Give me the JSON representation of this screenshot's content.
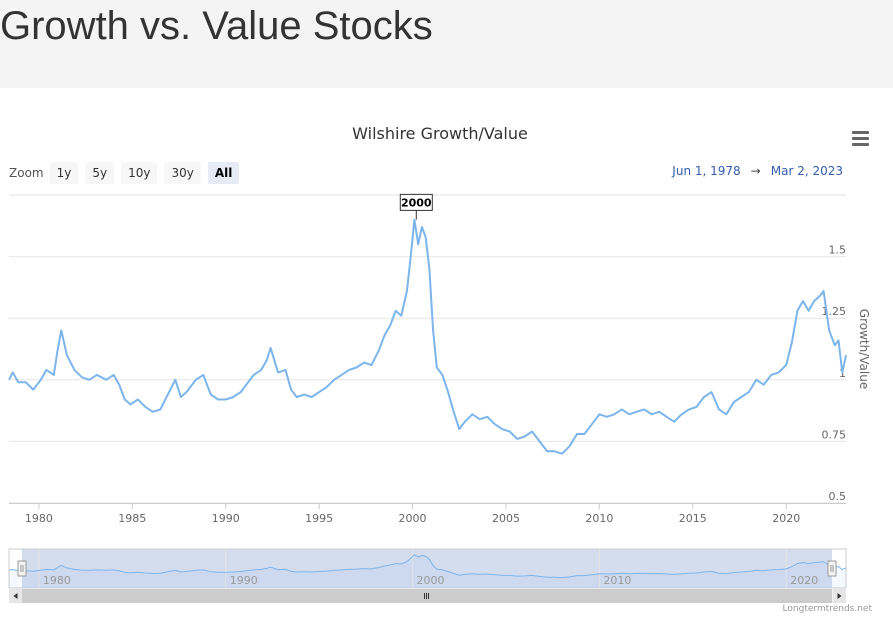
{
  "page": {
    "title": "Growth vs. Value Stocks"
  },
  "chart": {
    "title": "Wilshire Growth/Value",
    "zoom": {
      "label": "Zoom",
      "buttons": [
        "1y",
        "5y",
        "10y",
        "30y",
        "All"
      ],
      "active": "All"
    },
    "range": {
      "from": "Jun 1, 1978",
      "arrow": "→",
      "to": "Mar 2, 2023"
    },
    "credit": "Longtermtrends.net"
  },
  "chart_data": {
    "type": "line",
    "title": "Wilshire Growth/Value",
    "ylabel": "Growth/Value",
    "ylim": [
      0.5,
      1.75
    ],
    "yticks": [
      0.5,
      0.75,
      1,
      1.25,
      1.5
    ],
    "ytick_labels": [
      "0.5",
      "0.75",
      "1",
      "1.25",
      "1.5"
    ],
    "xlim": [
      1978.4,
      2023.2
    ],
    "xticks": [
      1980,
      1985,
      1990,
      1995,
      2000,
      2005,
      2010,
      2015,
      2020
    ],
    "navigator_ticks": [
      1980,
      1990,
      2000,
      2010,
      2020
    ],
    "annotation": {
      "label": "2000",
      "x": 2000.2,
      "y": 1.72
    },
    "grid": true,
    "series": [
      {
        "color": "#7cb5ec",
        "points": [
          [
            1978.4,
            1.0
          ],
          [
            1978.6,
            1.03
          ],
          [
            1978.9,
            0.99
          ],
          [
            1979.3,
            0.99
          ],
          [
            1979.7,
            0.96
          ],
          [
            1980.1,
            1.0
          ],
          [
            1980.4,
            1.04
          ],
          [
            1980.8,
            1.02
          ],
          [
            1981.0,
            1.12
          ],
          [
            1981.2,
            1.2
          ],
          [
            1981.5,
            1.1
          ],
          [
            1981.9,
            1.04
          ],
          [
            1982.3,
            1.01
          ],
          [
            1982.7,
            1.0
          ],
          [
            1983.1,
            1.02
          ],
          [
            1983.6,
            1.0
          ],
          [
            1984.0,
            1.02
          ],
          [
            1984.3,
            0.98
          ],
          [
            1984.6,
            0.92
          ],
          [
            1984.9,
            0.9
          ],
          [
            1985.3,
            0.92
          ],
          [
            1985.7,
            0.89
          ],
          [
            1986.1,
            0.87
          ],
          [
            1986.5,
            0.88
          ],
          [
            1986.9,
            0.94
          ],
          [
            1987.3,
            1.0
          ],
          [
            1987.6,
            0.93
          ],
          [
            1987.9,
            0.95
          ],
          [
            1988.4,
            1.0
          ],
          [
            1988.8,
            1.02
          ],
          [
            1989.2,
            0.94
          ],
          [
            1989.6,
            0.92
          ],
          [
            1990.0,
            0.92
          ],
          [
            1990.4,
            0.93
          ],
          [
            1990.8,
            0.95
          ],
          [
            1991.1,
            0.98
          ],
          [
            1991.5,
            1.02
          ],
          [
            1991.9,
            1.04
          ],
          [
            1992.2,
            1.08
          ],
          [
            1992.4,
            1.13
          ],
          [
            1992.8,
            1.03
          ],
          [
            1993.2,
            1.04
          ],
          [
            1993.5,
            0.96
          ],
          [
            1993.8,
            0.93
          ],
          [
            1994.2,
            0.94
          ],
          [
            1994.6,
            0.93
          ],
          [
            1995.0,
            0.95
          ],
          [
            1995.4,
            0.97
          ],
          [
            1995.8,
            1.0
          ],
          [
            1996.2,
            1.02
          ],
          [
            1996.6,
            1.04
          ],
          [
            1997.0,
            1.05
          ],
          [
            1997.4,
            1.07
          ],
          [
            1997.8,
            1.06
          ],
          [
            1998.2,
            1.12
          ],
          [
            1998.5,
            1.18
          ],
          [
            1998.8,
            1.22
          ],
          [
            1999.1,
            1.28
          ],
          [
            1999.4,
            1.26
          ],
          [
            1999.7,
            1.36
          ],
          [
            1999.9,
            1.5
          ],
          [
            2000.1,
            1.65
          ],
          [
            2000.3,
            1.55
          ],
          [
            2000.5,
            1.62
          ],
          [
            2000.7,
            1.58
          ],
          [
            2000.9,
            1.45
          ],
          [
            2001.1,
            1.2
          ],
          [
            2001.3,
            1.05
          ],
          [
            2001.6,
            1.02
          ],
          [
            2001.9,
            0.95
          ],
          [
            2002.2,
            0.87
          ],
          [
            2002.5,
            0.8
          ],
          [
            2002.8,
            0.83
          ],
          [
            2003.2,
            0.86
          ],
          [
            2003.6,
            0.84
          ],
          [
            2004.0,
            0.85
          ],
          [
            2004.4,
            0.82
          ],
          [
            2004.8,
            0.8
          ],
          [
            2005.2,
            0.79
          ],
          [
            2005.6,
            0.76
          ],
          [
            2006.0,
            0.77
          ],
          [
            2006.4,
            0.79
          ],
          [
            2006.8,
            0.75
          ],
          [
            2007.2,
            0.71
          ],
          [
            2007.6,
            0.71
          ],
          [
            2008.0,
            0.7
          ],
          [
            2008.4,
            0.73
          ],
          [
            2008.8,
            0.78
          ],
          [
            2009.2,
            0.78
          ],
          [
            2009.6,
            0.82
          ],
          [
            2010.0,
            0.86
          ],
          [
            2010.4,
            0.85
          ],
          [
            2010.8,
            0.86
          ],
          [
            2011.2,
            0.88
          ],
          [
            2011.6,
            0.86
          ],
          [
            2012.0,
            0.87
          ],
          [
            2012.4,
            0.88
          ],
          [
            2012.8,
            0.86
          ],
          [
            2013.2,
            0.87
          ],
          [
            2013.6,
            0.85
          ],
          [
            2014.0,
            0.83
          ],
          [
            2014.4,
            0.86
          ],
          [
            2014.8,
            0.88
          ],
          [
            2015.2,
            0.89
          ],
          [
            2015.6,
            0.93
          ],
          [
            2016.0,
            0.95
          ],
          [
            2016.4,
            0.88
          ],
          [
            2016.8,
            0.86
          ],
          [
            2017.2,
            0.91
          ],
          [
            2017.6,
            0.93
          ],
          [
            2018.0,
            0.95
          ],
          [
            2018.4,
            1.0
          ],
          [
            2018.8,
            0.98
          ],
          [
            2019.2,
            1.02
          ],
          [
            2019.6,
            1.03
          ],
          [
            2020.0,
            1.06
          ],
          [
            2020.3,
            1.15
          ],
          [
            2020.6,
            1.28
          ],
          [
            2020.9,
            1.32
          ],
          [
            2021.2,
            1.28
          ],
          [
            2021.5,
            1.32
          ],
          [
            2021.8,
            1.34
          ],
          [
            2022.0,
            1.36
          ],
          [
            2022.3,
            1.2
          ],
          [
            2022.6,
            1.14
          ],
          [
            2022.8,
            1.16
          ],
          [
            2023.0,
            1.03
          ],
          [
            2023.2,
            1.1
          ]
        ]
      }
    ]
  }
}
